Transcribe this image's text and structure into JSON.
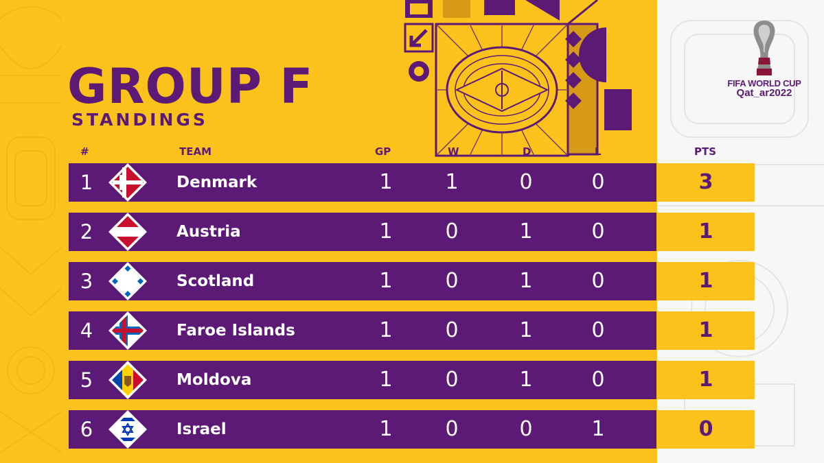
{
  "header": {
    "title": "GROUP F",
    "subtitle": "STANDINGS"
  },
  "columns": {
    "rank": "#",
    "team": "TEAM",
    "gp": "GP",
    "w": "W",
    "d": "D",
    "l": "L",
    "pts": "PTS"
  },
  "rows": [
    {
      "rank": "1",
      "team": "Denmark",
      "flag": "denmark-flag-icon",
      "gp": "1",
      "w": "1",
      "d": "0",
      "l": "0",
      "pts": "3"
    },
    {
      "rank": "2",
      "team": "Austria",
      "flag": "austria-flag-icon",
      "gp": "1",
      "w": "0",
      "d": "1",
      "l": "0",
      "pts": "1"
    },
    {
      "rank": "3",
      "team": "Scotland",
      "flag": "scotland-flag-icon",
      "gp": "1",
      "w": "0",
      "d": "1",
      "l": "0",
      "pts": "1"
    },
    {
      "rank": "4",
      "team": "Faroe Islands",
      "flag": "faroe-islands-flag-icon",
      "gp": "1",
      "w": "0",
      "d": "1",
      "l": "0",
      "pts": "1"
    },
    {
      "rank": "5",
      "team": "Moldova",
      "flag": "moldova-flag-icon",
      "gp": "1",
      "w": "0",
      "d": "1",
      "l": "0",
      "pts": "1"
    },
    {
      "rank": "6",
      "team": "Israel",
      "flag": "israel-flag-icon",
      "gp": "1",
      "w": "0",
      "d": "0",
      "l": "1",
      "pts": "0"
    }
  ],
  "logo": {
    "line1": "FIFA WORLD CUP",
    "line2": "Qat_ar2022",
    "icon": "world-cup-trophy-icon"
  },
  "colors": {
    "primary_yellow": "#fcc21c",
    "primary_purple": "#5c1a76",
    "text_white": "#ffffff"
  }
}
